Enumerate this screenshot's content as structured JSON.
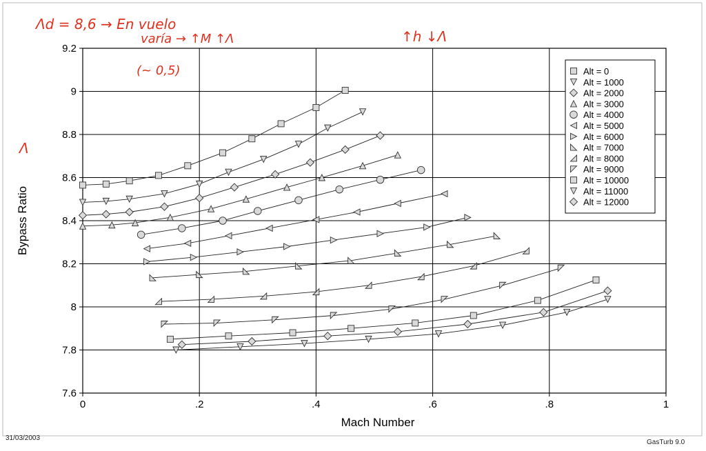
{
  "footer": {
    "date": "31/03/2003",
    "app": "GasTurb 9.0"
  },
  "notes": {
    "top_left_formula": "Λd = 8,6 → En vuelo",
    "top_left_varia": "varía → ↑M ↑Λ",
    "top_right": "↑h ↓Λ",
    "approx": "(~ 0,5)",
    "side_mark": "Λ",
    "ink_color": "#e0301e"
  },
  "chart_data": {
    "type": "scatter",
    "xlabel": "Mach Number",
    "ylabel": "Bypass Ratio",
    "xlim": [
      0,
      1
    ],
    "ylim": [
      7.6,
      9.2
    ],
    "xticks": [
      0,
      0.2,
      0.4,
      0.6,
      0.8,
      1
    ],
    "xtick_labels": [
      "0",
      ".2",
      ".4",
      ".6",
      ".8",
      "1"
    ],
    "yticks": [
      7.6,
      7.8,
      8,
      8.2,
      8.4,
      8.6,
      8.8,
      9,
      9.2
    ],
    "ytick_labels": [
      "7.6",
      "7.8",
      "8",
      "8.2",
      "8.4",
      "8.6",
      "8.8",
      "9",
      "9.2"
    ],
    "grid": true,
    "legend_position": "top-right",
    "series": [
      {
        "name": "Alt = 0",
        "marker": "square",
        "x": [
          0,
          0.04,
          0.08,
          0.13,
          0.18,
          0.24,
          0.29,
          0.34,
          0.4,
          0.45
        ],
        "y": [
          8.565,
          8.57,
          8.585,
          8.61,
          8.655,
          8.715,
          8.78,
          8.85,
          8.925,
          9.005
        ]
      },
      {
        "name": "Alt = 1000",
        "marker": "tri-down",
        "x": [
          0,
          0.04,
          0.08,
          0.14,
          0.2,
          0.25,
          0.31,
          0.37,
          0.42,
          0.48
        ],
        "y": [
          8.485,
          8.49,
          8.5,
          8.525,
          8.57,
          8.625,
          8.685,
          8.755,
          8.83,
          8.905
        ]
      },
      {
        "name": "Alt = 2000",
        "marker": "diamond",
        "x": [
          0,
          0.04,
          0.08,
          0.14,
          0.2,
          0.26,
          0.33,
          0.39,
          0.45,
          0.51
        ],
        "y": [
          8.425,
          8.43,
          8.44,
          8.465,
          8.505,
          8.555,
          8.615,
          8.67,
          8.73,
          8.795
        ]
      },
      {
        "name": "Alt = 3000",
        "marker": "tri-up",
        "x": [
          0,
          0.05,
          0.09,
          0.15,
          0.22,
          0.28,
          0.35,
          0.41,
          0.48,
          0.54
        ],
        "y": [
          8.375,
          8.38,
          8.39,
          8.415,
          8.455,
          8.5,
          8.555,
          8.6,
          8.655,
          8.705
        ]
      },
      {
        "name": "Alt = 4000",
        "marker": "circle",
        "x": [
          0.1,
          0.17,
          0.24,
          0.3,
          0.37,
          0.44,
          0.51,
          0.58
        ],
        "y": [
          8.335,
          8.365,
          8.4,
          8.445,
          8.495,
          8.545,
          8.59,
          8.635
        ]
      },
      {
        "name": "Alt = 5000",
        "marker": "tri-left",
        "x": [
          0.11,
          0.18,
          0.25,
          0.32,
          0.4,
          0.47,
          0.54,
          0.62
        ],
        "y": [
          8.27,
          8.295,
          8.33,
          8.365,
          8.405,
          8.44,
          8.48,
          8.525
        ]
      },
      {
        "name": "Alt = 6000",
        "marker": "tri-right",
        "x": [
          0.11,
          0.19,
          0.27,
          0.35,
          0.43,
          0.51,
          0.59,
          0.66
        ],
        "y": [
          8.21,
          8.23,
          8.255,
          8.28,
          8.31,
          8.34,
          8.37,
          8.415
        ]
      },
      {
        "name": "Alt = 7000",
        "marker": "corner",
        "x": [
          0.12,
          0.2,
          0.28,
          0.37,
          0.46,
          0.54,
          0.63,
          0.71
        ],
        "y": [
          8.135,
          8.15,
          8.165,
          8.19,
          8.215,
          8.25,
          8.29,
          8.33
        ]
      },
      {
        "name": "Alt = 8000",
        "marker": "corner-r",
        "x": [
          0.13,
          0.22,
          0.31,
          0.4,
          0.49,
          0.58,
          0.67,
          0.76
        ],
        "y": [
          8.025,
          8.035,
          8.05,
          8.07,
          8.1,
          8.14,
          8.19,
          8.26
        ]
      },
      {
        "name": "Alt = 9000",
        "marker": "flag",
        "x": [
          0.14,
          0.23,
          0.33,
          0.43,
          0.53,
          0.62,
          0.72,
          0.82
        ],
        "y": [
          7.92,
          7.925,
          7.94,
          7.96,
          7.99,
          8.035,
          8.1,
          8.18
        ]
      },
      {
        "name": "Alt = 10000",
        "marker": "square",
        "x": [
          0.15,
          0.25,
          0.36,
          0.46,
          0.57,
          0.67,
          0.78,
          0.88
        ],
        "y": [
          7.85,
          7.865,
          7.88,
          7.9,
          7.925,
          7.96,
          8.03,
          8.125
        ]
      },
      {
        "name": "Alt = 11000",
        "marker": "tri-down",
        "x": [
          0.16,
          0.27,
          0.38,
          0.49,
          0.61,
          0.72,
          0.83,
          0.9
        ],
        "y": [
          7.8,
          7.815,
          7.83,
          7.85,
          7.875,
          7.915,
          7.975,
          8.035
        ]
      },
      {
        "name": "Alt = 12000",
        "marker": "diamond",
        "x": [
          0.17,
          0.29,
          0.42,
          0.54,
          0.66,
          0.79,
          0.9
        ],
        "y": [
          7.825,
          7.84,
          7.865,
          7.885,
          7.92,
          7.975,
          8.075
        ]
      }
    ]
  }
}
